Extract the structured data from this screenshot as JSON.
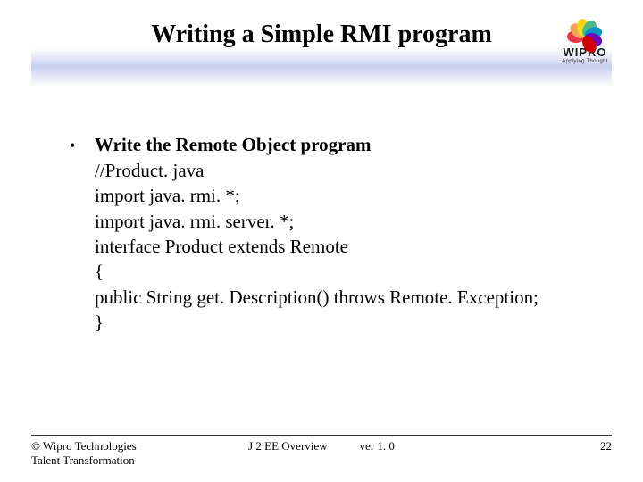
{
  "title": {
    "text": "Writing a Simple RMI program",
    "fontsize": 28,
    "color": "#000000"
  },
  "logo": {
    "brand": "WIPRO",
    "tagline": "Applying Thought",
    "petal_colors": [
      "#e63946",
      "#f4a261",
      "#ffd60a",
      "#52b788",
      "#0096c7",
      "#7209b7",
      "#d00000"
    ]
  },
  "content": {
    "heading": "Write the Remote Object program",
    "lines": [
      "//Product. java",
      "import java. rmi. *;",
      "import java. rmi. server. *;",
      "interface Product extends Remote",
      "{",
      "public String get. Description() throws Remote. Exception;",
      "}"
    ],
    "fontsize": 21
  },
  "footer": {
    "copyright_line1": "© Wipro Technologies",
    "copyright_line2": "Talent Transformation",
    "center_title": "J 2 EE Overview",
    "version": "ver 1. 0",
    "page": "22",
    "fontsize": 13
  },
  "colors": {
    "background": "#ffffff",
    "text": "#000000",
    "band_mid": "#c8d0f0"
  }
}
